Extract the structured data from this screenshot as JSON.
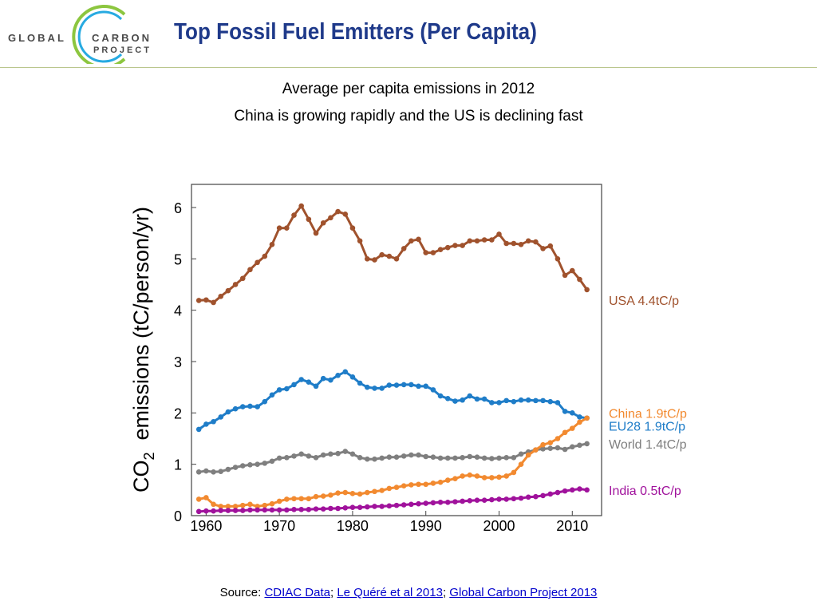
{
  "header": {
    "logo": {
      "word1": "GLOBAL",
      "word2": "CARBON",
      "word3": "PROJECT"
    },
    "title": "Top Fossil Fuel Emitters (Per Capita)"
  },
  "subtitle": {
    "line1": "Average per capita emissions in 2012",
    "line2": "China is growing rapidly and the US is declining fast"
  },
  "source": {
    "prefix": "Source: ",
    "links": [
      "CDIAC Data",
      "Le Quéré et al 2013",
      "Global Carbon Project 2013"
    ],
    "separator": "; "
  },
  "chart_data": {
    "type": "line",
    "ylabel_pre": "CO",
    "ylabel_sub": "2",
    "ylabel_post": "  emissions (tC/person/yr)",
    "xlabel": "",
    "xlim": [
      1958,
      2014
    ],
    "ylim": [
      0,
      6.45
    ],
    "xticks": [
      1960,
      1970,
      1980,
      1990,
      2000,
      2010
    ],
    "yticks": [
      0,
      1,
      2,
      3,
      4,
      5,
      6
    ],
    "grid": false,
    "x": [
      1959,
      1960,
      1961,
      1962,
      1963,
      1964,
      1965,
      1966,
      1967,
      1968,
      1969,
      1970,
      1971,
      1972,
      1973,
      1974,
      1975,
      1976,
      1977,
      1978,
      1979,
      1980,
      1981,
      1982,
      1983,
      1984,
      1985,
      1986,
      1987,
      1988,
      1989,
      1990,
      1991,
      1992,
      1993,
      1994,
      1995,
      1996,
      1997,
      1998,
      1999,
      2000,
      2001,
      2002,
      2003,
      2004,
      2005,
      2006,
      2007,
      2008,
      2009,
      2010,
      2011,
      2012
    ],
    "series": [
      {
        "name": "USA",
        "label": "USA 4.4tC/p",
        "color": "#a0522d",
        "values": [
          4.19,
          4.2,
          4.15,
          4.27,
          4.38,
          4.5,
          4.62,
          4.79,
          4.93,
          5.05,
          5.28,
          5.6,
          5.6,
          5.85,
          6.03,
          5.77,
          5.5,
          5.7,
          5.8,
          5.92,
          5.87,
          5.6,
          5.35,
          5.0,
          4.98,
          5.08,
          5.05,
          5.0,
          5.2,
          5.35,
          5.38,
          5.12,
          5.12,
          5.18,
          5.22,
          5.26,
          5.26,
          5.35,
          5.35,
          5.37,
          5.37,
          5.48,
          5.3,
          5.3,
          5.28,
          5.35,
          5.33,
          5.2,
          5.25,
          5.0,
          4.68,
          4.77,
          4.6,
          4.4
        ]
      },
      {
        "name": "EU28",
        "label": "EU28 1.9tC/p",
        "color": "#1f7dc8",
        "values": [
          1.68,
          1.78,
          1.83,
          1.92,
          2.02,
          2.08,
          2.12,
          2.13,
          2.12,
          2.22,
          2.35,
          2.45,
          2.47,
          2.55,
          2.65,
          2.6,
          2.52,
          2.67,
          2.64,
          2.73,
          2.8,
          2.7,
          2.58,
          2.5,
          2.48,
          2.48,
          2.54,
          2.54,
          2.55,
          2.55,
          2.52,
          2.52,
          2.45,
          2.33,
          2.28,
          2.23,
          2.25,
          2.33,
          2.27,
          2.27,
          2.2,
          2.2,
          2.24,
          2.22,
          2.25,
          2.25,
          2.24,
          2.24,
          2.22,
          2.2,
          2.03,
          2.0,
          1.92,
          1.9
        ]
      },
      {
        "name": "World",
        "label": "World 1.4tC/p",
        "color": "#7f7f7f",
        "values": [
          0.85,
          0.87,
          0.85,
          0.86,
          0.9,
          0.94,
          0.97,
          0.99,
          1.0,
          1.02,
          1.06,
          1.12,
          1.13,
          1.16,
          1.2,
          1.16,
          1.13,
          1.18,
          1.2,
          1.21,
          1.25,
          1.2,
          1.13,
          1.1,
          1.1,
          1.12,
          1.14,
          1.14,
          1.16,
          1.18,
          1.18,
          1.15,
          1.14,
          1.12,
          1.12,
          1.12,
          1.13,
          1.15,
          1.14,
          1.12,
          1.11,
          1.12,
          1.13,
          1.13,
          1.2,
          1.24,
          1.28,
          1.3,
          1.31,
          1.32,
          1.29,
          1.34,
          1.37,
          1.4
        ]
      },
      {
        "name": "China",
        "label": "China 1.9tC/p",
        "color": "#f28a30",
        "values": [
          0.32,
          0.35,
          0.22,
          0.18,
          0.18,
          0.18,
          0.2,
          0.22,
          0.18,
          0.2,
          0.23,
          0.28,
          0.32,
          0.33,
          0.33,
          0.33,
          0.37,
          0.38,
          0.4,
          0.44,
          0.45,
          0.43,
          0.42,
          0.45,
          0.47,
          0.49,
          0.53,
          0.55,
          0.58,
          0.6,
          0.61,
          0.61,
          0.63,
          0.65,
          0.69,
          0.72,
          0.77,
          0.79,
          0.77,
          0.74,
          0.74,
          0.75,
          0.77,
          0.84,
          1.0,
          1.18,
          1.28,
          1.38,
          1.42,
          1.5,
          1.62,
          1.7,
          1.82,
          1.9
        ]
      },
      {
        "name": "India",
        "label": "India 0.5tC/p",
        "color": "#a0129c",
        "values": [
          0.08,
          0.09,
          0.09,
          0.1,
          0.1,
          0.1,
          0.1,
          0.11,
          0.11,
          0.11,
          0.11,
          0.11,
          0.11,
          0.12,
          0.12,
          0.12,
          0.13,
          0.13,
          0.14,
          0.14,
          0.15,
          0.16,
          0.16,
          0.17,
          0.18,
          0.18,
          0.19,
          0.2,
          0.21,
          0.22,
          0.23,
          0.24,
          0.25,
          0.26,
          0.26,
          0.27,
          0.28,
          0.29,
          0.3,
          0.3,
          0.31,
          0.32,
          0.32,
          0.33,
          0.34,
          0.36,
          0.37,
          0.39,
          0.42,
          0.45,
          0.48,
          0.5,
          0.52,
          0.5
        ]
      }
    ]
  }
}
